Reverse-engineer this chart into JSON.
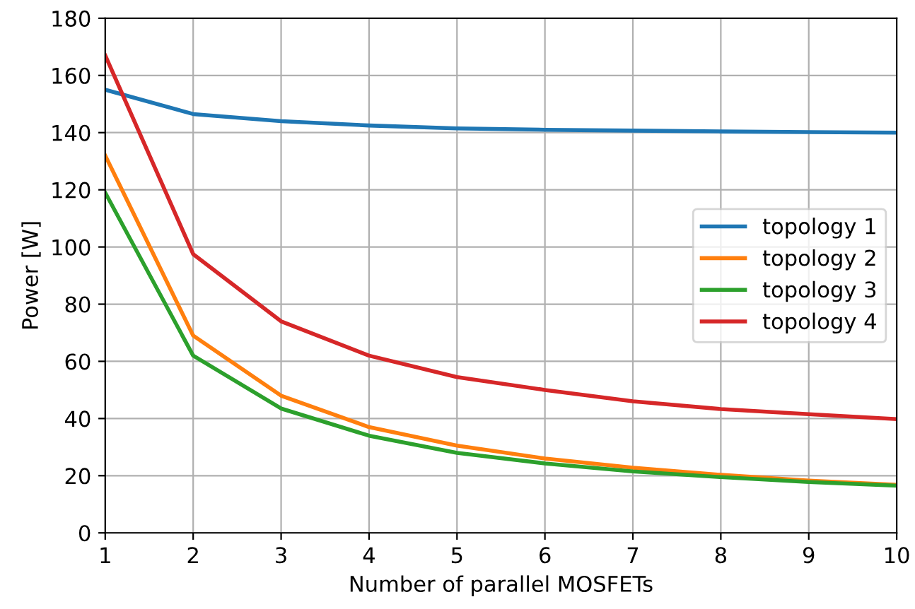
{
  "chart_data": {
    "type": "line",
    "xlabel": "Number of parallel MOSFETs",
    "ylabel": "Power [W]",
    "x": [
      1,
      2,
      3,
      4,
      5,
      6,
      7,
      8,
      9,
      10
    ],
    "series": [
      {
        "name": "topology 1",
        "color": "#1f77b4",
        "values": [
          155,
          146.5,
          144,
          142.5,
          141.5,
          141,
          140.7,
          140.4,
          140.2,
          140
        ]
      },
      {
        "name": "topology 2",
        "color": "#ff7f0e",
        "values": [
          132,
          69,
          48,
          37,
          30.5,
          26,
          22.8,
          20.3,
          18.3,
          16.8
        ]
      },
      {
        "name": "topology 3",
        "color": "#2ca02c",
        "values": [
          119,
          62,
          43.5,
          34,
          28,
          24.3,
          21.5,
          19.5,
          17.8,
          16.5
        ]
      },
      {
        "name": "topology 4",
        "color": "#d62728",
        "values": [
          167,
          97.5,
          74,
          62,
          54.5,
          50,
          46,
          43.3,
          41.5,
          39.8
        ]
      }
    ],
    "xlim": [
      1,
      10
    ],
    "xticks": [
      1,
      2,
      3,
      4,
      5,
      6,
      7,
      8,
      9,
      10
    ],
    "ylim": [
      0,
      180
    ],
    "yticks": [
      0,
      20,
      40,
      60,
      80,
      100,
      120,
      140,
      160,
      180
    ],
    "grid": true,
    "legend": "center right"
  }
}
